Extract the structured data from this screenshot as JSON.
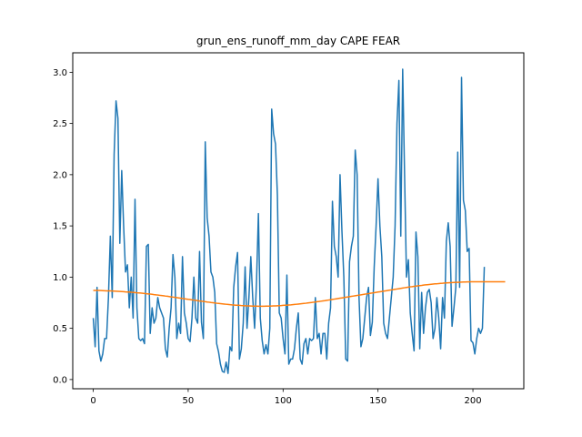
{
  "chart_data": {
    "type": "line",
    "title": "grun_ens_runoff_mm_day CAPE FEAR",
    "xlabel": "",
    "ylabel": "",
    "xlim": [
      -10.8,
      226.8
    ],
    "ylim": [
      -0.09,
      3.19
    ],
    "xticks": [
      0,
      50,
      100,
      150,
      200
    ],
    "yticks": [
      0.0,
      0.5,
      1.0,
      1.5,
      2.0,
      2.5,
      3.0
    ],
    "ytick_labels": [
      "0.0",
      "0.5",
      "1.0",
      "1.5",
      "2.0",
      "2.5",
      "3.0"
    ],
    "grid": false,
    "series": [
      {
        "color": "#1f77b4",
        "values": [
          0.6,
          0.32,
          0.9,
          0.28,
          0.18,
          0.25,
          0.4,
          0.4,
          0.8,
          1.4,
          0.8,
          2.2,
          2.72,
          2.55,
          1.33,
          2.04,
          1.5,
          1.05,
          1.12,
          0.7,
          1.0,
          0.6,
          1.76,
          0.7,
          0.4,
          0.38,
          0.4,
          0.35,
          1.3,
          1.32,
          0.45,
          0.7,
          0.55,
          0.6,
          0.8,
          0.7,
          0.65,
          0.6,
          0.3,
          0.22,
          0.5,
          0.7,
          1.22,
          1.0,
          0.4,
          0.55,
          0.45,
          1.2,
          0.65,
          0.55,
          0.4,
          0.37,
          0.6,
          1.0,
          0.6,
          0.55,
          1.25,
          0.56,
          0.4,
          2.32,
          1.58,
          1.4,
          1.05,
          1.0,
          0.85,
          0.35,
          0.27,
          0.15,
          0.08,
          0.07,
          0.17,
          0.06,
          0.32,
          0.28,
          0.9,
          1.1,
          1.24,
          0.2,
          0.3,
          0.55,
          1.1,
          0.5,
          0.8,
          1.2,
          0.8,
          0.5,
          0.95,
          1.62,
          0.6,
          0.38,
          0.25,
          0.34,
          0.25,
          0.5,
          2.64,
          2.4,
          2.3,
          1.8,
          0.65,
          0.6,
          0.4,
          0.25,
          1.02,
          0.15,
          0.2,
          0.2,
          0.3,
          0.5,
          0.65,
          0.2,
          0.15,
          0.35,
          0.4,
          0.25,
          0.4,
          0.38,
          0.4,
          0.8,
          0.4,
          0.45,
          0.25,
          0.45,
          0.45,
          0.2,
          0.55,
          0.7,
          1.74,
          1.3,
          1.2,
          1.0,
          2.0,
          1.45,
          1.0,
          0.2,
          0.18,
          1.15,
          1.3,
          1.4,
          2.24,
          2.0,
          0.8,
          0.32,
          0.4,
          0.6,
          0.8,
          0.9,
          0.43,
          0.56,
          1.1,
          1.5,
          1.96,
          1.5,
          1.2,
          0.55,
          0.45,
          0.4,
          0.6,
          0.8,
          1.0,
          1.5,
          2.5,
          2.92,
          1.4,
          3.03,
          2.0,
          1.0,
          1.17,
          0.65,
          0.45,
          0.28,
          1.44,
          1.2,
          0.3,
          0.85,
          0.45,
          0.7,
          0.85,
          0.88,
          0.75,
          0.4,
          0.5,
          0.8,
          0.6,
          0.3,
          0.8,
          0.6,
          1.35,
          1.53,
          1.3,
          0.52,
          0.7,
          0.9,
          2.22,
          0.9,
          2.95,
          1.75,
          1.65,
          1.25,
          1.28,
          0.38,
          0.36,
          0.25,
          0.4,
          0.5,
          0.45,
          0.5,
          1.1
        ]
      },
      {
        "color": "#ff7f0e",
        "values": [
          0.87,
          0.87,
          0.87,
          0.87,
          0.869,
          0.868,
          0.867,
          0.866,
          0.866,
          0.865,
          0.864,
          0.863,
          0.862,
          0.861,
          0.86,
          0.859,
          0.858,
          0.856,
          0.855,
          0.854,
          0.852,
          0.851,
          0.849,
          0.847,
          0.846,
          0.844,
          0.842,
          0.84,
          0.838,
          0.836,
          0.834,
          0.832,
          0.829,
          0.827,
          0.825,
          0.822,
          0.82,
          0.818,
          0.815,
          0.813,
          0.81,
          0.807,
          0.805,
          0.802,
          0.8,
          0.797,
          0.794,
          0.791,
          0.789,
          0.786,
          0.783,
          0.781,
          0.778,
          0.775,
          0.773,
          0.77,
          0.767,
          0.765,
          0.762,
          0.76,
          0.757,
          0.755,
          0.752,
          0.75,
          0.748,
          0.745,
          0.743,
          0.741,
          0.739,
          0.737,
          0.735,
          0.733,
          0.731,
          0.729,
          0.728,
          0.726,
          0.725,
          0.724,
          0.722,
          0.721,
          0.72,
          0.719,
          0.719,
          0.718,
          0.717,
          0.717,
          0.717,
          0.716,
          0.716,
          0.716,
          0.716,
          0.717,
          0.717,
          0.717,
          0.718,
          0.719,
          0.719,
          0.72,
          0.721,
          0.722,
          0.724,
          0.725,
          0.726,
          0.728,
          0.729,
          0.731,
          0.733,
          0.735,
          0.737,
          0.739,
          0.741,
          0.743,
          0.745,
          0.748,
          0.75,
          0.752,
          0.755,
          0.757,
          0.76,
          0.762,
          0.765,
          0.768,
          0.77,
          0.773,
          0.776,
          0.779,
          0.782,
          0.785,
          0.788,
          0.791,
          0.794,
          0.797,
          0.8,
          0.803,
          0.806,
          0.809,
          0.812,
          0.815,
          0.818,
          0.821,
          0.824,
          0.827,
          0.83,
          0.833,
          0.836,
          0.839,
          0.842,
          0.845,
          0.848,
          0.851,
          0.854,
          0.857,
          0.86,
          0.863,
          0.866,
          0.869,
          0.872,
          0.875,
          0.878,
          0.881,
          0.884,
          0.887,
          0.89,
          0.893,
          0.896,
          0.899,
          0.902,
          0.905,
          0.907,
          0.91,
          0.912,
          0.915,
          0.917,
          0.919,
          0.922,
          0.924,
          0.926,
          0.928,
          0.93,
          0.932,
          0.934,
          0.935,
          0.937,
          0.939,
          0.94,
          0.942,
          0.943,
          0.944,
          0.945,
          0.947,
          0.948,
          0.949,
          0.949,
          0.95,
          0.951,
          0.952,
          0.952,
          0.953,
          0.953,
          0.954,
          0.954,
          0.954,
          0.955,
          0.955,
          0.955,
          0.955,
          0.955,
          0.955,
          0.955,
          0.955,
          0.955,
          0.955,
          0.955,
          0.955,
          0.955,
          0.955,
          0.955,
          0.955
        ]
      }
    ]
  }
}
